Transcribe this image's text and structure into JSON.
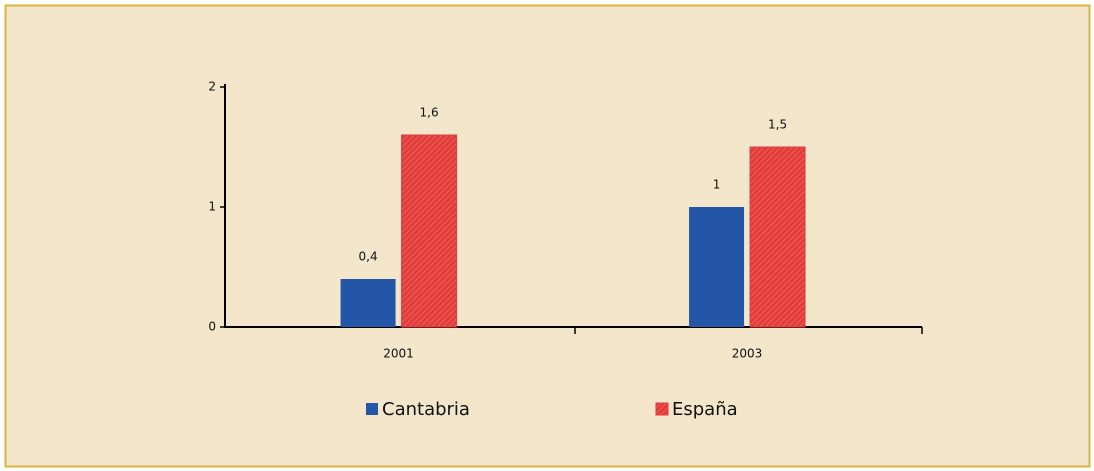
{
  "chart_data": {
    "type": "bar",
    "categories": [
      "2001",
      "2003"
    ],
    "series": [
      {
        "name": "Cantabria",
        "color": "#2356a6",
        "values": [
          0.4,
          1
        ],
        "value_labels": [
          "0,4",
          "1"
        ]
      },
      {
        "name": "España",
        "color": "#e23b3b",
        "values": [
          1.6,
          1.5
        ],
        "value_labels": [
          "1,6",
          "1,5"
        ]
      }
    ],
    "ylim": [
      0,
      2
    ],
    "yticks": [
      0,
      1,
      2
    ],
    "grid": false,
    "legend": "bottom"
  }
}
